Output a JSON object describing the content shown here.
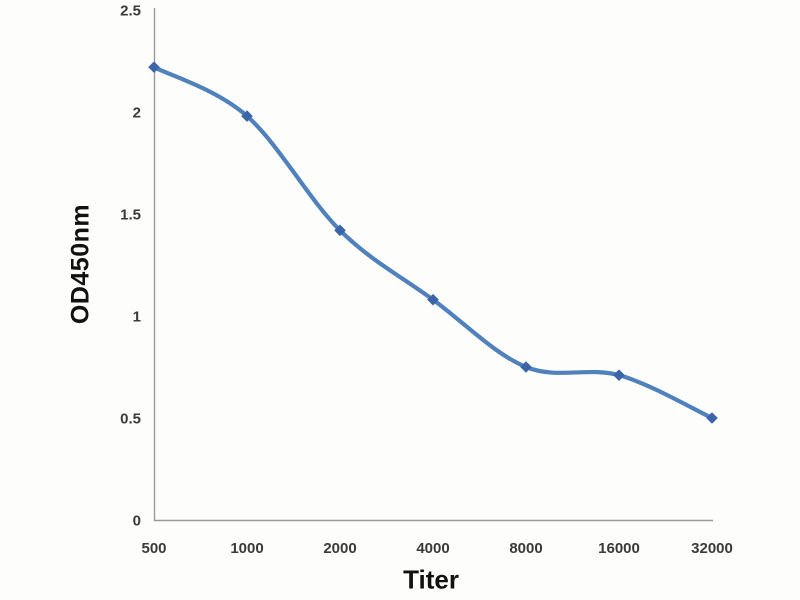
{
  "figure": {
    "background_color": "#fdfdfb"
  },
  "chart_data": {
    "type": "line",
    "title": "",
    "categories": [
      "500",
      "1000",
      "2000",
      "4000",
      "8000",
      "16000",
      "32000"
    ],
    "series": [
      {
        "name": "OD450nm",
        "values": [
          2.22,
          1.98,
          1.42,
          1.08,
          0.75,
          0.71,
          0.5
        ]
      }
    ],
    "xlabel": "Titer",
    "ylabel": "OD450nm",
    "ylim": [
      0,
      2.5
    ],
    "yticks": [
      0,
      0.5,
      1,
      1.5,
      2,
      2.5
    ],
    "ytick_labels": [
      "0",
      "0.5",
      "1",
      "1.5",
      "2",
      "2.5"
    ],
    "grid": false,
    "legend": false,
    "smooth": true,
    "marker_shape": "diamond",
    "line_color": "#4f81bd",
    "marker_color": "#3c64a8",
    "axis_color": "#9a9a9a",
    "tick_label_color": "#3a3a3a",
    "axis_title_color": "#111111"
  }
}
